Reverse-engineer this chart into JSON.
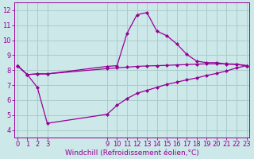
{
  "background_color": "#cce8e8",
  "grid_color": "#aacccc",
  "line_color": "#990099",
  "marker": "D",
  "marker_size": 2.0,
  "line_width": 0.9,
  "xlabel": "Windchill (Refroidissement éolien,°C)",
  "xlabel_fontsize": 6.5,
  "tick_fontsize": 6.0,
  "ylim": [
    3.5,
    12.5
  ],
  "xlim": [
    -0.3,
    23.3
  ],
  "yticks": [
    4,
    5,
    6,
    7,
    8,
    9,
    10,
    11,
    12
  ],
  "xtick_positions": [
    0,
    1,
    2,
    3,
    9,
    10,
    11,
    12,
    13,
    14,
    15,
    16,
    17,
    18,
    19,
    20,
    21,
    22,
    23
  ],
  "xtick_labels": [
    "0",
    "1",
    "2",
    "3",
    "9",
    "10",
    "11",
    "12",
    "13",
    "14",
    "15",
    "16",
    "17",
    "18",
    "19",
    "20",
    "21",
    "22",
    "23"
  ],
  "line1_x": [
    0,
    1,
    2,
    3,
    9,
    10,
    11,
    12,
    13,
    14,
    15,
    16,
    17,
    18,
    19,
    20,
    21,
    22,
    23
  ],
  "line1_y": [
    8.3,
    7.7,
    7.75,
    7.75,
    8.25,
    8.3,
    10.45,
    11.7,
    11.85,
    10.6,
    10.3,
    9.75,
    9.05,
    8.6,
    8.5,
    8.5,
    8.4,
    8.38,
    8.3
  ],
  "line2_x": [
    0,
    1,
    2,
    3,
    9,
    10,
    11,
    12,
    13,
    14,
    15,
    16,
    17,
    18,
    19,
    20,
    21,
    22,
    23
  ],
  "line2_y": [
    8.3,
    7.7,
    7.75,
    7.75,
    8.1,
    8.15,
    8.2,
    8.25,
    8.28,
    8.3,
    8.32,
    8.35,
    8.37,
    8.4,
    8.42,
    8.42,
    8.42,
    8.4,
    8.3
  ],
  "line3_x": [
    0,
    1,
    2,
    3,
    9,
    10,
    11,
    12,
    13,
    14,
    15,
    16,
    17,
    18,
    19,
    20,
    21,
    22,
    23
  ],
  "line3_y": [
    8.3,
    7.7,
    6.85,
    4.45,
    5.05,
    5.65,
    6.1,
    6.45,
    6.65,
    6.85,
    7.05,
    7.2,
    7.35,
    7.48,
    7.65,
    7.78,
    7.95,
    8.15,
    8.3
  ]
}
